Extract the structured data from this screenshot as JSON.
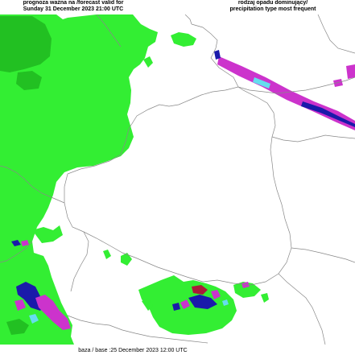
{
  "header": {
    "left_line1": "prognoza ważna na /forecast valid for",
    "left_line2": "Sunday 31 December 2023 21:00 UTC",
    "right_line1": "rodzaj opadu dominujący/",
    "right_line2": "precipitation type most frequent"
  },
  "footer": {
    "base_label": "baza / base :25 December 2023 12:00 UTC"
  },
  "colors": {
    "rain": "#33ee33",
    "rain_dark": "#22c022",
    "mixed": "#cc33cc",
    "snow": "#1a1aaa",
    "snow_light": "#66ddee",
    "freezing": "#aa1a3a",
    "border": "#888888"
  },
  "map_icons": {
    "precipitation_field": "precipitation-area",
    "country_borders": "border-lines"
  }
}
